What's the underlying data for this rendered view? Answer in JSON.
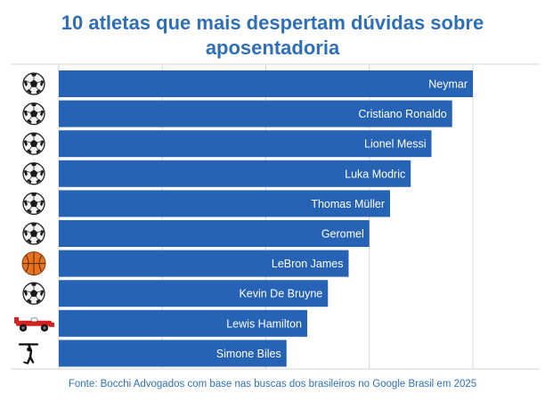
{
  "title_line1": "10 atletas que mais despertam dúvidas sobre",
  "title_line2": "aposentadoria",
  "source": "Fonte: Bocchi Advogados com base nas buscas dos brasileiros no Google Brasil em 2025",
  "colors": {
    "bar": "#2663b4",
    "title": "#2e6fb8",
    "grid": "#d6d6d6"
  },
  "chart_data": {
    "type": "bar",
    "orientation": "horizontal",
    "title": "10 atletas que mais despertam dúvidas sobre aposentadoria",
    "grid": true,
    "xlim": [
      0,
      100
    ],
    "categories": [
      "Neymar",
      "Cristiano Ronaldo",
      "Lionel Messi",
      "Luka Modric",
      "Thomas Müller",
      "Geromel",
      "LeBron James",
      "Kevin De Bruyne",
      "Lewis Hamilton",
      "Simone Biles"
    ],
    "values": [
      100,
      95,
      90,
      85,
      80,
      75,
      70,
      65,
      60,
      55
    ],
    "icons": [
      "soccer-ball-icon",
      "soccer-ball-icon",
      "soccer-ball-icon",
      "soccer-ball-icon",
      "soccer-ball-icon",
      "soccer-ball-icon",
      "basketball-icon",
      "soccer-ball-icon",
      "f1-car-icon",
      "gymnast-icon"
    ]
  }
}
